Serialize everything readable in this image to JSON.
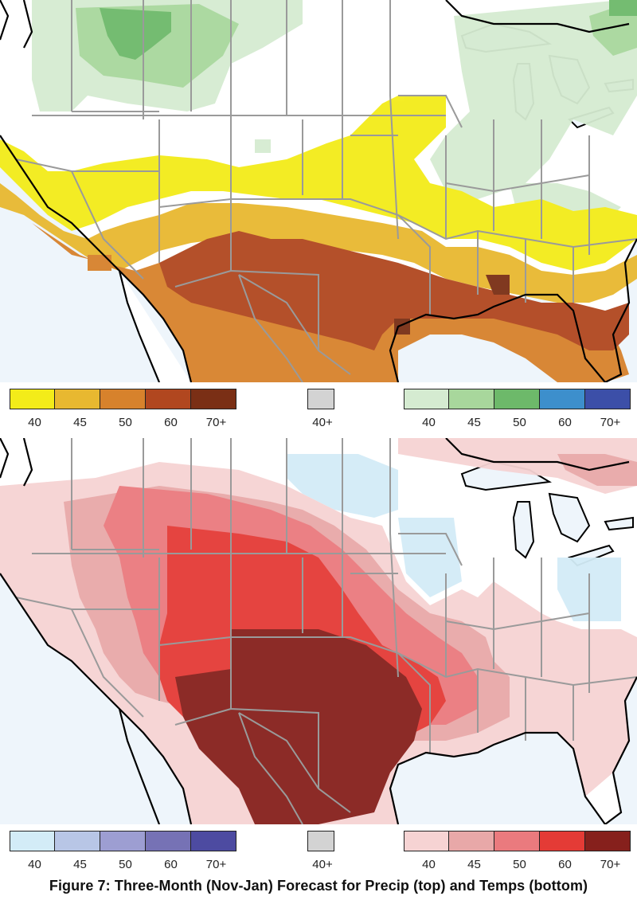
{
  "caption": "Figure 7: Three-Month (Nov-Jan) Forecast for Precip (top) and Temps (bottom)",
  "colors": {
    "ocean": "#eef5fb",
    "land": "#ffffff",
    "state_border": "#9a9a9a",
    "coast": "#000000"
  },
  "maps": [
    {
      "name": "precip",
      "dry_colors": [
        "#f3ec19",
        "#e8b830",
        "#d7822c",
        "#b1471f",
        "#7a2f15"
      ],
      "wet_colors": [
        "#d5ebd1",
        "#a8d79c",
        "#6db96a",
        "#3d8fcc",
        "#3c4fa8"
      ]
    },
    {
      "name": "temps",
      "cold_colors": [
        "#d3ecf7",
        "#b8c6e6",
        "#9d9ed2",
        "#7672b5",
        "#4d4ba1"
      ],
      "warm_colors": [
        "#f6d3d3",
        "#e8a8a8",
        "#ea7a7e",
        "#e43b36",
        "#86201c"
      ]
    }
  ],
  "legends": [
    {
      "below_labels": [
        "40",
        "45",
        "50",
        "60",
        "70+"
      ],
      "below_colors": [
        "#f3ec19",
        "#e8b830",
        "#d7822c",
        "#b1471f",
        "#7a2f15"
      ],
      "equal_label": "40+",
      "equal_color": "#d3d3d3",
      "above_labels": [
        "40",
        "45",
        "50",
        "60",
        "70+"
      ],
      "above_colors": [
        "#d5ebd1",
        "#a8d79c",
        "#6db96a",
        "#3d8fcc",
        "#3c4fa8"
      ]
    },
    {
      "below_labels": [
        "40",
        "45",
        "50",
        "60",
        "70+"
      ],
      "below_colors": [
        "#d3ecf7",
        "#b8c6e6",
        "#9d9ed2",
        "#7672b5",
        "#4d4ba1"
      ],
      "equal_label": "40+",
      "equal_color": "#d3d3d3",
      "above_labels": [
        "40",
        "45",
        "50",
        "60",
        "70+"
      ],
      "above_colors": [
        "#f6d3d3",
        "#e8a8a8",
        "#ea7a7e",
        "#e43b36",
        "#86201c"
      ]
    }
  ]
}
